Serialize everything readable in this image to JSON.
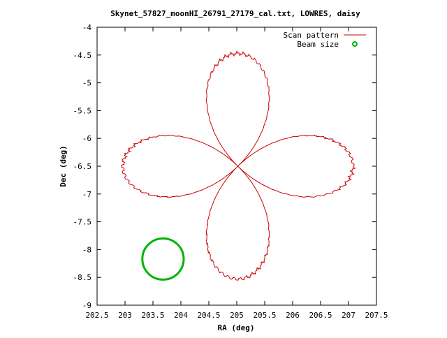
{
  "chart_data": {
    "type": "line",
    "title": "Skynet_57827_moonHI_26791_27179_cal.txt, LOWRES, daisy",
    "xlabel": "RA (deg)",
    "ylabel": "Dec (deg)",
    "xlim": [
      202.5,
      207.5
    ],
    "ylim": [
      -9,
      -4
    ],
    "x_ticks": [
      202.5,
      203,
      203.5,
      204,
      204.5,
      205,
      205.5,
      206,
      206.5,
      207,
      207.5
    ],
    "x_tick_labels": [
      "202.5",
      "203",
      "203.5",
      "204",
      "204.5",
      "205",
      "205.5",
      "206",
      "206.5",
      "207",
      "207.5"
    ],
    "y_ticks": [
      -4,
      -4.5,
      -5,
      -5.5,
      -6,
      -6.5,
      -7,
      -7.5,
      -8,
      -8.5,
      -9
    ],
    "y_tick_labels": [
      "-4",
      "-4.5",
      "-5",
      "-5.5",
      "-6",
      "-6.5",
      "-7",
      "-7.5",
      "-8",
      "-8.5",
      "-9"
    ],
    "grid": false,
    "legend_position": "top-right",
    "series": [
      {
        "name": "Scan pattern",
        "style": "line",
        "color": "#cc0000",
        "shape": "four-petal daisy",
        "center": [
          205.02,
          -6.5
        ],
        "extent_ra": [
          202.98,
          207.08
        ],
        "extent_dec": [
          -8.53,
          -4.48
        ]
      },
      {
        "name": "Beam size",
        "style": "circle",
        "color": "#00b400",
        "center": [
          203.68,
          -8.17
        ],
        "radius_ra": 0.37,
        "radius_dec": 0.37
      }
    ]
  }
}
